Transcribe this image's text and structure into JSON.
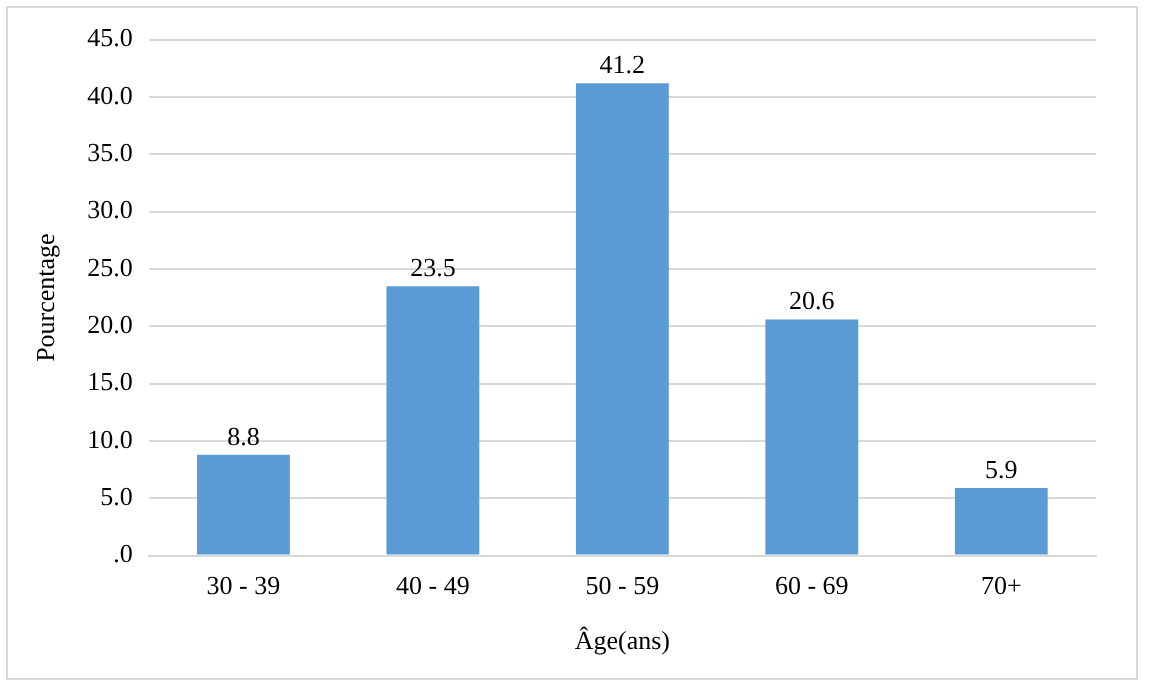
{
  "chart_data": {
    "type": "bar",
    "xlabel": "Âge(ans)",
    "ylabel": "Pourcentage",
    "categories": [
      "30 - 39",
      "40 - 49",
      "50 - 59",
      "60 - 69",
      "70+"
    ],
    "values": [
      8.8,
      23.5,
      41.2,
      20.6,
      5.9
    ],
    "color": "#5b9bd5",
    "ylim": [
      0,
      45
    ],
    "yticks": [
      {
        "value": 0,
        "label": ".0"
      },
      {
        "value": 5,
        "label": "5.0"
      },
      {
        "value": 10,
        "label": "10.0"
      },
      {
        "value": 15,
        "label": "15.0"
      },
      {
        "value": 20,
        "label": "20.0"
      },
      {
        "value": 25,
        "label": "25.0"
      },
      {
        "value": 30,
        "label": "30.0"
      },
      {
        "value": 35,
        "label": "35.0"
      },
      {
        "value": 40,
        "label": "40.0"
      },
      {
        "value": 45,
        "label": "45.0"
      }
    ],
    "grid": "y",
    "data_labels": true
  }
}
